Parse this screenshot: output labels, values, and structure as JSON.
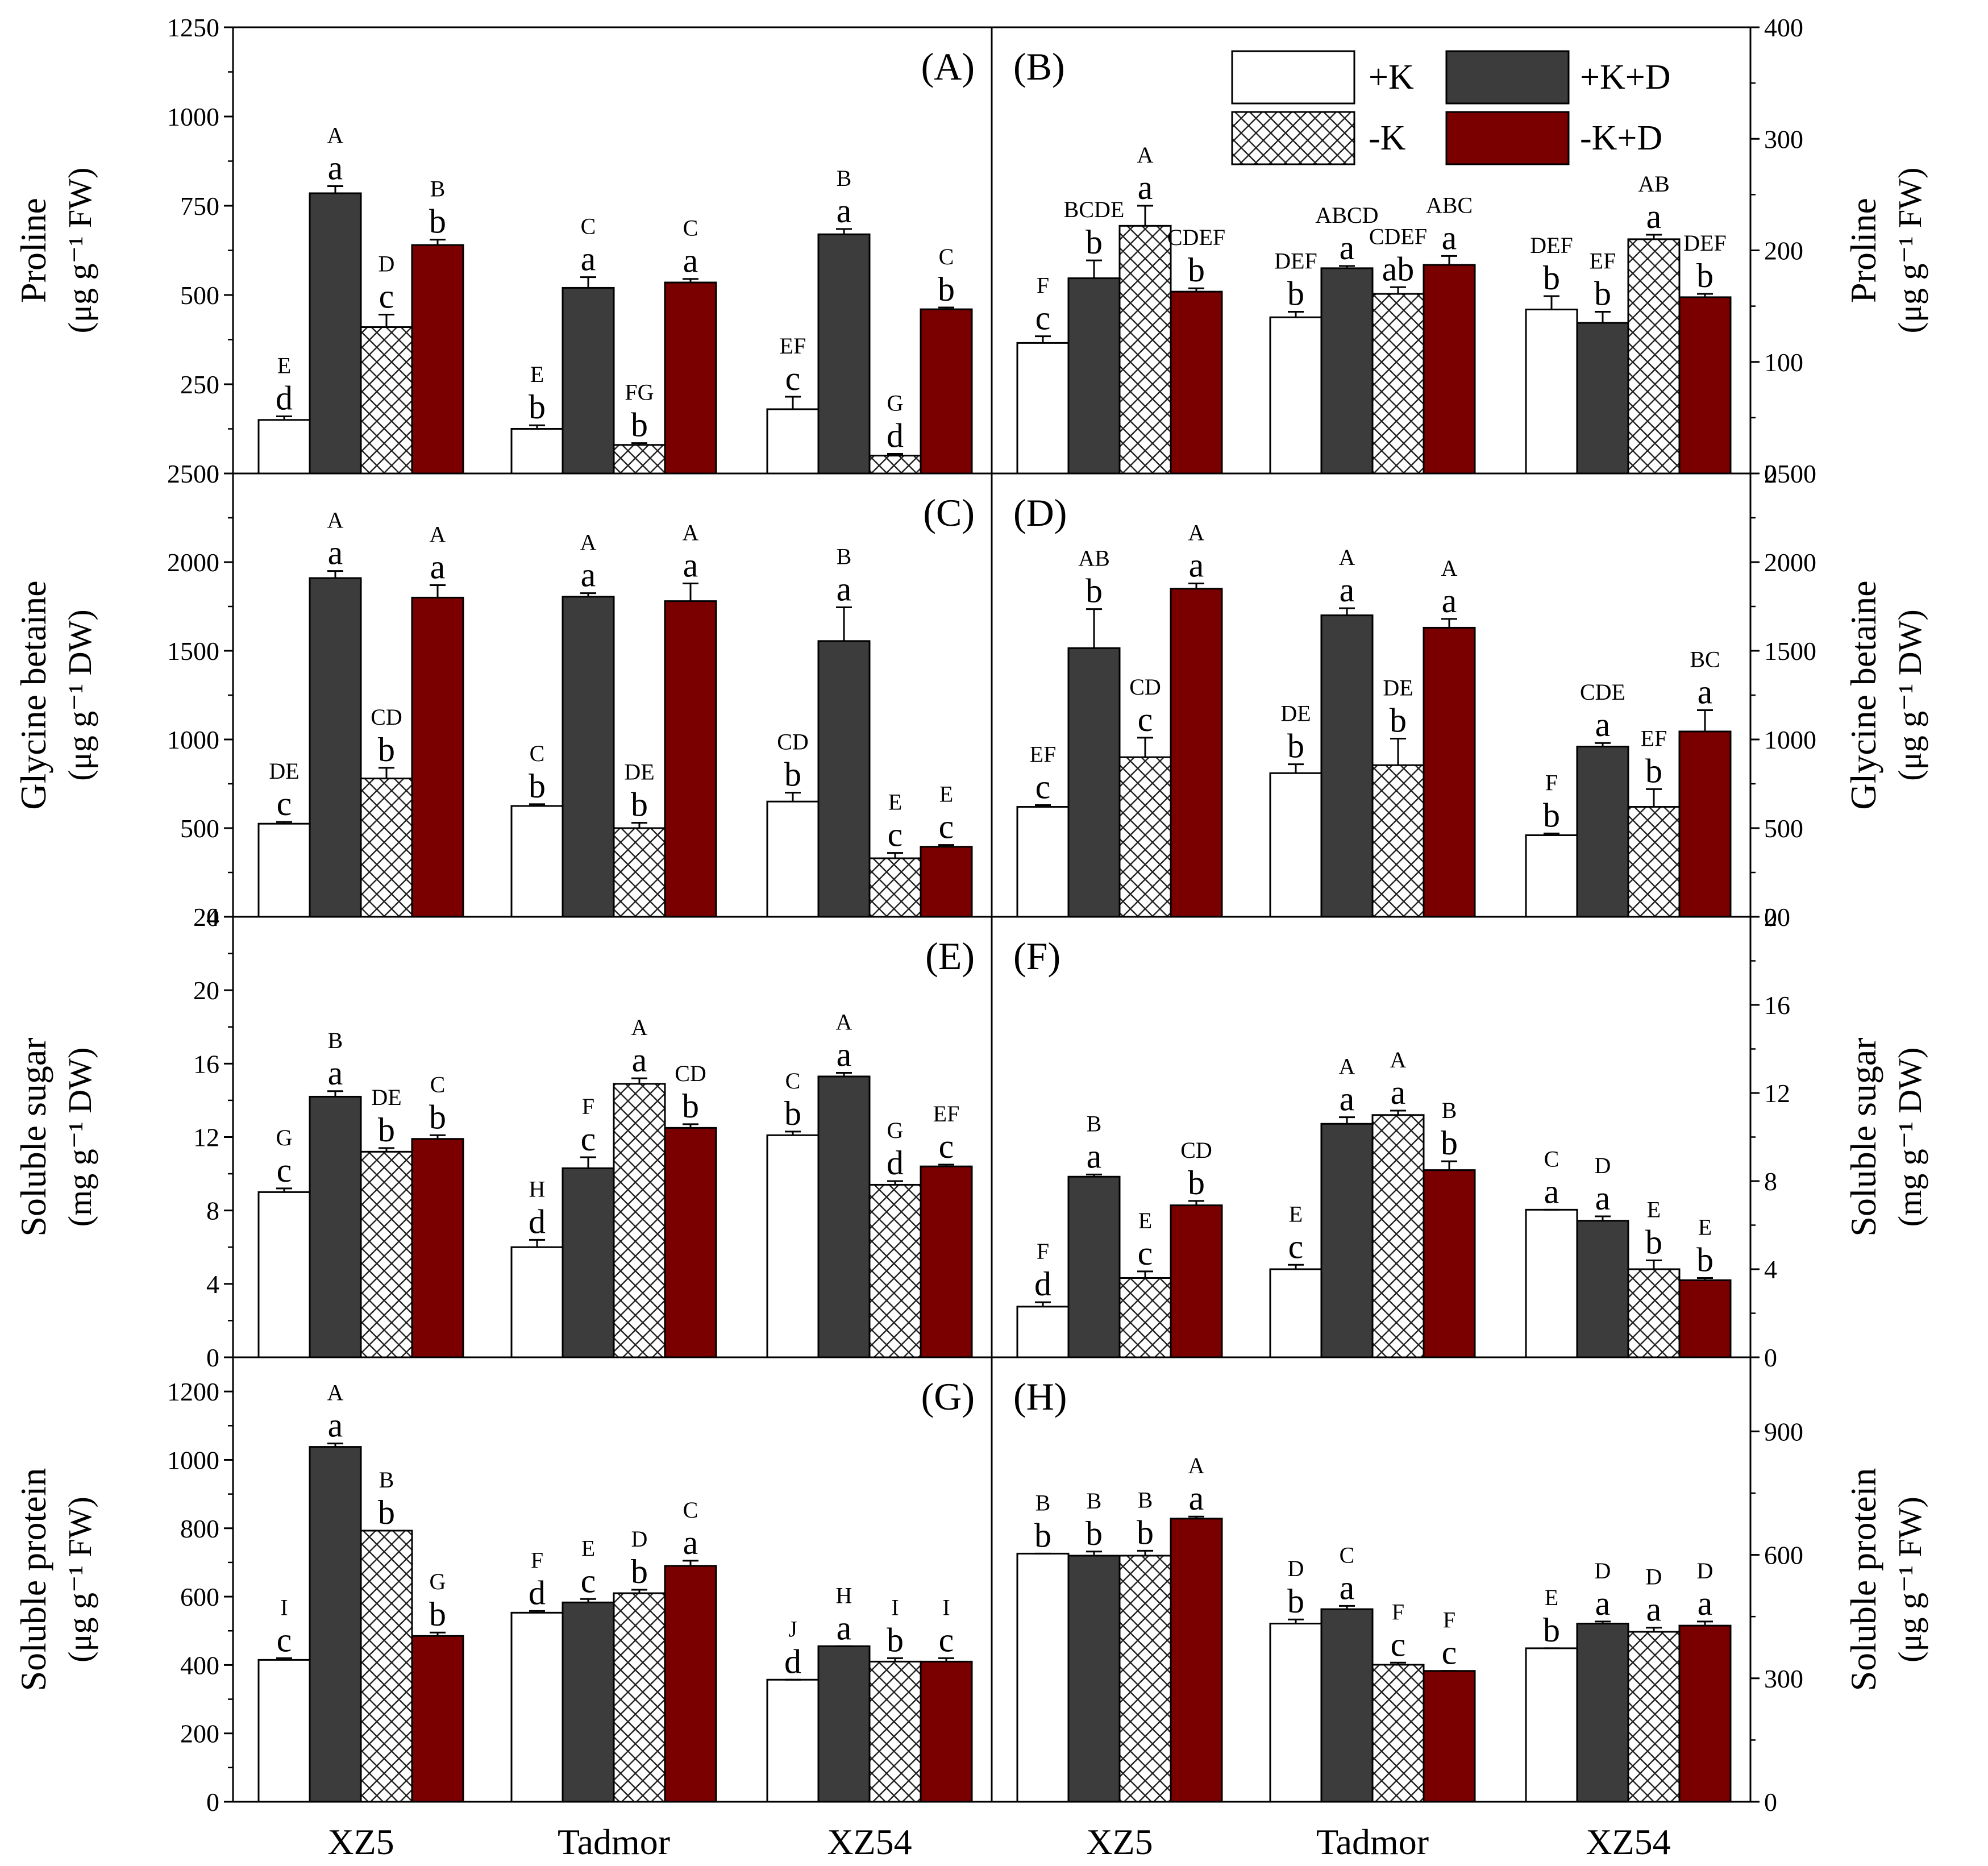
{
  "colors": {
    "plusK": "#ffffff",
    "plusKD": "#3c3c3c",
    "minusK": "#ffffff",
    "minusKD": "#7a0000",
    "axis": "#000000"
  },
  "legend": {
    "items": [
      {
        "key": "plusK",
        "label": "+K",
        "pattern": "none"
      },
      {
        "key": "plusKD",
        "label": "+K+D",
        "pattern": "none"
      },
      {
        "key": "minusK",
        "label": "-K",
        "pattern": "crosshatch"
      },
      {
        "key": "minusKD",
        "label": "-K+D",
        "pattern": "none"
      }
    ]
  },
  "chart_data": [
    {
      "panel": "(A)",
      "type": "bar",
      "ylabel": "Proline",
      "yunit": "(μg g⁻¹ FW)",
      "ylim": [
        0,
        1250
      ],
      "yticks": [
        0,
        250,
        500,
        750,
        1000,
        1250
      ],
      "categories": [
        "XZ5",
        "Tadmor",
        "XZ54"
      ],
      "series": [
        {
          "name": "+K",
          "values": [
            150,
            125,
            180
          ],
          "errors": [
            10,
            10,
            35
          ],
          "lower": [
            "d",
            "b",
            "c"
          ],
          "upper": [
            "E",
            "E",
            "EF"
          ]
        },
        {
          "name": "+K+D",
          "values": [
            785,
            520,
            670
          ],
          "errors": [
            20,
            30,
            15
          ],
          "lower": [
            "a",
            "a",
            "a"
          ],
          "upper": [
            "A",
            "C",
            "B"
          ]
        },
        {
          "name": "-K",
          "values": [
            410,
            80,
            50
          ],
          "errors": [
            35,
            5,
            5
          ],
          "lower": [
            "c",
            "b",
            "d"
          ],
          "upper": [
            "D",
            "FG",
            "G"
          ]
        },
        {
          "name": "-K+D",
          "values": [
            640,
            535,
            460
          ],
          "errors": [
            15,
            10,
            5
          ],
          "lower": [
            "b",
            "a",
            "b"
          ],
          "upper": [
            "B",
            "C",
            "C"
          ]
        }
      ]
    },
    {
      "panel": "(B)",
      "type": "bar",
      "ylabel": "Proline",
      "yunit": "(μg g⁻¹ FW)",
      "ylim": [
        0,
        400
      ],
      "yticks": [
        0,
        100,
        200,
        300,
        400
      ],
      "categories": [
        "XZ5",
        "Tadmor",
        "XZ54"
      ],
      "series": [
        {
          "name": "+K",
          "values": [
            117,
            140,
            147
          ],
          "errors": [
            6,
            5,
            12
          ],
          "lower": [
            "c",
            "b",
            "b"
          ],
          "upper": [
            "F",
            "DEF",
            "DEF"
          ]
        },
        {
          "name": "+K+D",
          "values": [
            175,
            184,
            135
          ],
          "errors": [
            16,
            2,
            10
          ],
          "lower": [
            "b",
            "a",
            "b"
          ],
          "upper": [
            "BCDE",
            "ABCD",
            "EF"
          ]
        },
        {
          "name": "-K",
          "values": [
            222,
            161,
            210
          ],
          "errors": [
            18,
            6,
            4
          ],
          "lower": [
            "a",
            "ab",
            "a"
          ],
          "upper": [
            "A",
            "CDEF",
            "AB"
          ]
        },
        {
          "name": "-K+D",
          "values": [
            163,
            187,
            158
          ],
          "errors": [
            3,
            8,
            3
          ],
          "lower": [
            "b",
            "a",
            "b"
          ],
          "upper": [
            "CDEF",
            "ABC",
            "DEF"
          ]
        }
      ]
    },
    {
      "panel": "(C)",
      "type": "bar",
      "ylabel": "Glycine betaine",
      "yunit": "(μg g⁻¹ DW)",
      "ylim": [
        0,
        2500
      ],
      "yticks": [
        0,
        500,
        1000,
        1500,
        2000,
        2500
      ],
      "categories": [
        "XZ5",
        "Tadmor",
        "XZ54"
      ],
      "series": [
        {
          "name": "+K",
          "values": [
            525,
            625,
            650
          ],
          "errors": [
            10,
            10,
            50
          ],
          "lower": [
            "c",
            "b",
            "b"
          ],
          "upper": [
            "DE",
            "C",
            "CD"
          ]
        },
        {
          "name": "+K+D",
          "values": [
            1910,
            1805,
            1555
          ],
          "errors": [
            40,
            20,
            190
          ],
          "lower": [
            "a",
            "a",
            "a"
          ],
          "upper": [
            "A",
            "A",
            "B"
          ]
        },
        {
          "name": "-K",
          "values": [
            780,
            500,
            330
          ],
          "errors": [
            60,
            30,
            30
          ],
          "lower": [
            "b",
            "b",
            "c"
          ],
          "upper": [
            "CD",
            "DE",
            "E"
          ]
        },
        {
          "name": "-K+D",
          "values": [
            1800,
            1780,
            395
          ],
          "errors": [
            70,
            100,
            10
          ],
          "lower": [
            "a",
            "a",
            "c"
          ],
          "upper": [
            "A",
            "A",
            "E"
          ]
        }
      ]
    },
    {
      "panel": "(D)",
      "type": "bar",
      "ylabel": "Glycine betaine",
      "yunit": "(μg g⁻¹ DW)",
      "ylim": [
        0,
        2500
      ],
      "yticks": [
        0,
        500,
        1000,
        1500,
        2000,
        2500
      ],
      "categories": [
        "XZ5",
        "Tadmor",
        "XZ54"
      ],
      "series": [
        {
          "name": "+K",
          "values": [
            620,
            810,
            460
          ],
          "errors": [
            10,
            50,
            10
          ],
          "lower": [
            "c",
            "b",
            "b"
          ],
          "upper": [
            "EF",
            "DE",
            "F"
          ]
        },
        {
          "name": "+K+D",
          "values": [
            1515,
            1700,
            960
          ],
          "errors": [
            220,
            40,
            20
          ],
          "lower": [
            "b",
            "a",
            "a"
          ],
          "upper": [
            "AB",
            "A",
            "CDE"
          ]
        },
        {
          "name": "-K",
          "values": [
            900,
            855,
            620
          ],
          "errors": [
            110,
            150,
            100
          ],
          "lower": [
            "c",
            "b",
            "b"
          ],
          "upper": [
            "CD",
            "DE",
            "EF"
          ]
        },
        {
          "name": "-K+D",
          "values": [
            1850,
            1630,
            1045
          ],
          "errors": [
            30,
            50,
            120
          ],
          "lower": [
            "a",
            "a",
            "a"
          ],
          "upper": [
            "A",
            "A",
            "BC"
          ]
        }
      ]
    },
    {
      "panel": "(E)",
      "type": "bar",
      "ylabel": "Soluble sugar",
      "yunit": "(mg g⁻¹ DW)",
      "ylim": [
        0,
        24
      ],
      "yticks": [
        0,
        4,
        8,
        12,
        16,
        20,
        24
      ],
      "categories": [
        "XZ5",
        "Tadmor",
        "XZ54"
      ],
      "series": [
        {
          "name": "+K",
          "values": [
            9.0,
            6.0,
            12.1
          ],
          "errors": [
            0.2,
            0.4,
            0.2
          ],
          "lower": [
            "c",
            "d",
            "b"
          ],
          "upper": [
            "G",
            "H",
            "C"
          ]
        },
        {
          "name": "+K+D",
          "values": [
            14.2,
            10.3,
            15.3
          ],
          "errors": [
            0.3,
            0.6,
            0.2
          ],
          "lower": [
            "a",
            "c",
            "a"
          ],
          "upper": [
            "B",
            "F",
            "A"
          ]
        },
        {
          "name": "-K",
          "values": [
            11.2,
            14.9,
            9.4
          ],
          "errors": [
            0.2,
            0.3,
            0.2
          ],
          "lower": [
            "b",
            "a",
            "d"
          ],
          "upper": [
            "DE",
            "A",
            "G"
          ]
        },
        {
          "name": "-K+D",
          "values": [
            11.9,
            12.5,
            10.4
          ],
          "errors": [
            0.2,
            0.2,
            0.1
          ],
          "lower": [
            "b",
            "b",
            "c"
          ],
          "upper": [
            "C",
            "CD",
            "EF"
          ]
        }
      ]
    },
    {
      "panel": "(F)",
      "type": "bar",
      "ylabel": "Soluble sugar",
      "yunit": "(mg g⁻¹ DW)",
      "ylim": [
        0,
        20
      ],
      "yticks": [
        0,
        4,
        8,
        12,
        16,
        20
      ],
      "categories": [
        "XZ5",
        "Tadmor",
        "XZ54"
      ],
      "series": [
        {
          "name": "+K",
          "values": [
            2.3,
            4.0,
            6.7
          ],
          "errors": [
            0.2,
            0.2,
            0.0
          ],
          "lower": [
            "d",
            "c",
            "a"
          ],
          "upper": [
            "F",
            "E",
            "C"
          ]
        },
        {
          "name": "+K+D",
          "values": [
            8.2,
            10.6,
            6.2
          ],
          "errors": [
            0.1,
            0.3,
            0.2
          ],
          "lower": [
            "a",
            "a",
            "a"
          ],
          "upper": [
            "B",
            "A",
            "D"
          ]
        },
        {
          "name": "-K",
          "values": [
            3.6,
            11.0,
            4.0
          ],
          "errors": [
            0.3,
            0.2,
            0.4
          ],
          "lower": [
            "c",
            "a",
            "b"
          ],
          "upper": [
            "E",
            "A",
            "E"
          ]
        },
        {
          "name": "-K+D",
          "values": [
            6.9,
            8.5,
            3.5
          ],
          "errors": [
            0.2,
            0.4,
            0.1
          ],
          "lower": [
            "b",
            "b",
            "b"
          ],
          "upper": [
            "CD",
            "B",
            "E"
          ]
        }
      ]
    },
    {
      "panel": "(G)",
      "type": "bar",
      "ylabel": "Soluble protein",
      "yunit": "(μg g⁻¹ FW)",
      "ylim": [
        0,
        1300
      ],
      "yticks": [
        0,
        200,
        400,
        600,
        800,
        1000,
        1200
      ],
      "categories": [
        "XZ5",
        "Tadmor",
        "XZ54"
      ],
      "series": [
        {
          "name": "+K",
          "values": [
            415,
            553,
            357
          ],
          "errors": [
            5,
            5,
            0
          ],
          "lower": [
            "c",
            "d",
            "d"
          ],
          "upper": [
            "I",
            "F",
            "J"
          ]
        },
        {
          "name": "+K+D",
          "values": [
            1038,
            583,
            455
          ],
          "errors": [
            10,
            10,
            0
          ],
          "lower": [
            "a",
            "c",
            "a"
          ],
          "upper": [
            "A",
            "E",
            "H"
          ]
        },
        {
          "name": "-K",
          "values": [
            793,
            610,
            410
          ],
          "errors": [
            0,
            10,
            10
          ],
          "lower": [
            "b",
            "b",
            "b"
          ],
          "upper": [
            "B",
            "D",
            "I"
          ]
        },
        {
          "name": "-K+D",
          "values": [
            485,
            690,
            410
          ],
          "errors": [
            10,
            15,
            10
          ],
          "lower": [
            "b",
            "a",
            "c"
          ],
          "upper": [
            "G",
            "C",
            "I"
          ]
        }
      ]
    },
    {
      "panel": "(H)",
      "type": "bar",
      "ylabel": "Soluble protein",
      "yunit": "(μg g⁻¹ FW)",
      "ylim": [
        0,
        1080
      ],
      "yticks": [
        0,
        300,
        600,
        900
      ],
      "categories": [
        "XZ5",
        "Tadmor",
        "XZ54"
      ],
      "series": [
        {
          "name": "+K",
          "values": [
            603,
            433,
            373
          ],
          "errors": [
            0,
            10,
            0
          ],
          "lower": [
            "b",
            "b",
            "b"
          ],
          "upper": [
            "B",
            "D",
            "E"
          ]
        },
        {
          "name": "+K+D",
          "values": [
            598,
            468,
            433
          ],
          "errors": [
            10,
            8,
            5
          ],
          "lower": [
            "b",
            "a",
            "a"
          ],
          "upper": [
            "B",
            "C",
            "D"
          ]
        },
        {
          "name": "-K",
          "values": [
            598,
            333,
            413
          ],
          "errors": [
            12,
            5,
            10
          ],
          "lower": [
            "b",
            "c",
            "a"
          ],
          "upper": [
            "B",
            "F",
            "D"
          ]
        },
        {
          "name": "-K+D",
          "values": [
            688,
            318,
            428
          ],
          "errors": [
            5,
            0,
            10
          ],
          "lower": [
            "a",
            "c",
            "a"
          ],
          "upper": [
            "A",
            "F",
            "D"
          ]
        }
      ]
    }
  ]
}
